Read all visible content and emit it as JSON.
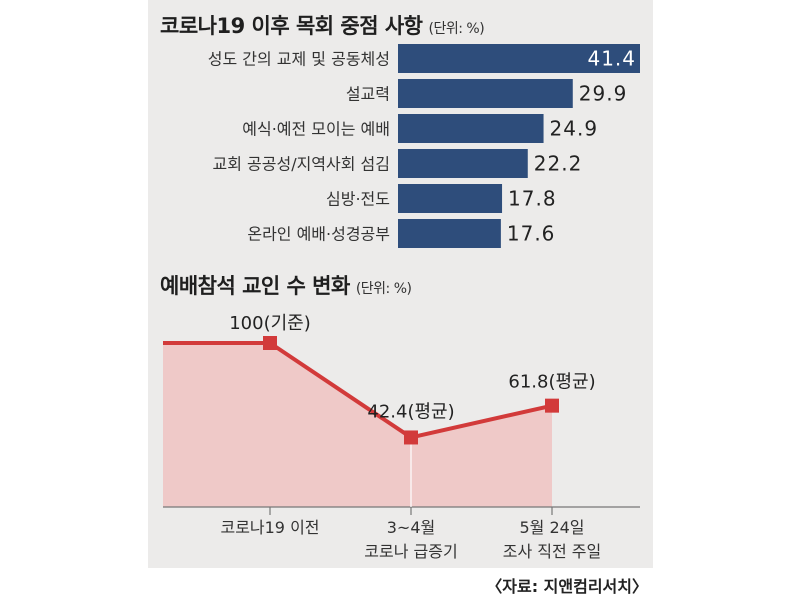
{
  "chart_data": [
    {
      "type": "bar",
      "orientation": "horizontal",
      "title": "코로나19 이후 목회 중점 사항",
      "unit": "(단위: %)",
      "categories": [
        "성도 간의 교제 및 공동체성",
        "설교력",
        "예식·예전 모이는 예배",
        "교회 공공성/지역사회 섬김",
        "심방·전도",
        "온라인 예배·성경공부"
      ],
      "values": [
        41.4,
        29.9,
        24.9,
        22.2,
        17.8,
        17.6
      ],
      "value_labels": [
        "41.4",
        "29.9",
        "24.9",
        "22.2",
        "17.8",
        "17.6"
      ],
      "xlim": [
        0,
        41.4
      ],
      "bar_color": "#2e4d7b"
    },
    {
      "type": "area",
      "title": "예배참석 교인 수 변화",
      "unit": "(단위: %)",
      "categories": [
        "코로나19 이전",
        "3~4월 코로나 급증기",
        "5월 24일 조사 직전 주일"
      ],
      "x_tick_lines": [
        [
          "코로나19 이전"
        ],
        [
          "3~4월",
          "코로나 급증기"
        ],
        [
          "5월 24일",
          "조사 직전 주일"
        ]
      ],
      "values": [
        100,
        42.4,
        61.8
      ],
      "point_labels": [
        "100(기준)",
        "42.4(평균)",
        "61.8(평균)"
      ],
      "ylim": [
        0,
        100
      ],
      "line_color": "#d23a3a",
      "fill_color": "#efc9c8"
    }
  ],
  "source": "〈자료: 지앤컴리서치〉"
}
